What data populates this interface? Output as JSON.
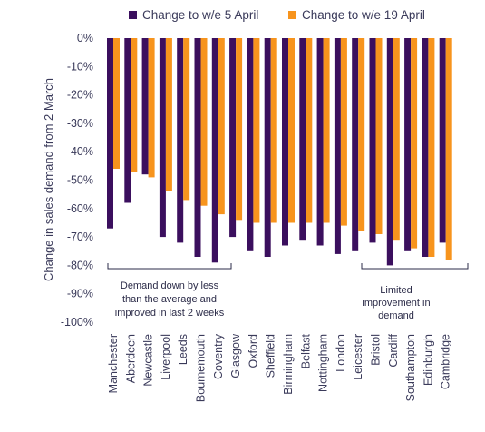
{
  "chart_data": {
    "type": "bar",
    "ylabel": "Change in sales demand from 2 March",
    "ylim": [
      -100,
      0
    ],
    "yticks": [
      "0%",
      "-10%",
      "-20%",
      "-30%",
      "-40%",
      "-50%",
      "-60%",
      "-70%",
      "-80%",
      "-90%",
      "-100%"
    ],
    "grid": false,
    "legend_position": "top",
    "categories": [
      "Manchester",
      "Aberdeen",
      "Newcastle",
      "Liverpool",
      "Leeds",
      "Bournemouth",
      "Coventry",
      "Glasgow",
      "Oxford",
      "Sheffield",
      "Birmingham",
      "Belfast",
      "Nottingham",
      "London",
      "Leicester",
      "Bristol",
      "Cardiff",
      "Southampton",
      "Edinburgh",
      "Cambridge"
    ],
    "series": [
      {
        "name": "Change to w/e 5 April",
        "color": "#3b0f5e",
        "values": [
          -67,
          -58,
          -48,
          -70,
          -72,
          -77,
          -79,
          -70,
          -75,
          -77,
          -73,
          -71,
          -73,
          -76,
          -75,
          -72,
          -80,
          -75,
          -77,
          -72
        ]
      },
      {
        "name": "Change to w/e 19 April",
        "color": "#f7941d",
        "values": [
          -46,
          -47,
          -49,
          -54,
          -57,
          -59,
          -62,
          -64,
          -65,
          -65,
          -65,
          -65,
          -65,
          -66,
          -68,
          -69,
          -71,
          -74,
          -77,
          -78
        ]
      }
    ],
    "annotations": [
      {
        "text": [
          "Demand down by less",
          "than the average and",
          "improved in last 2 weeks"
        ]
      },
      {
        "text": [
          "Limited",
          "improvement in",
          "demand"
        ]
      }
    ]
  }
}
